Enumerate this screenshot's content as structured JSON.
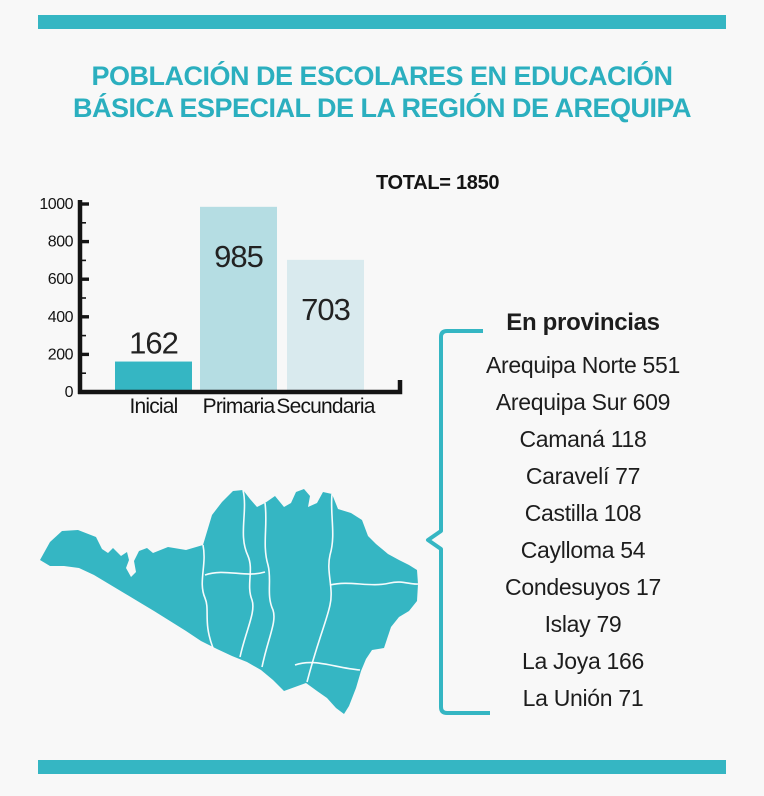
{
  "page": {
    "background": "#f8f8f8",
    "colors": {
      "accent": "#35b6c3",
      "title": "#2bafbf",
      "text": "#1d1d1d",
      "map_border": "#ffffff"
    },
    "title_line1": "POBLACIÓN DE ESCOLARES EN EDUCACIÓN",
    "title_line2": "BÁSICA ESPECIAL DE LA REGIÓN DE AREQUIPA"
  },
  "summary": {
    "total_label": "TOTAL= 1850"
  },
  "chart_data": {
    "type": "bar",
    "title": "POBLACIÓN DE ESCOLARES EN EDUCACIÓN BÁSICA ESPECIAL DE LA REGIÓN DE AREQUIPA",
    "categories": [
      "Inicial",
      "Primaria",
      "Secundaria"
    ],
    "values": [
      162,
      985,
      703
    ],
    "bar_colors": [
      "#35b6c3",
      "#b5dde3",
      "#d9eaee"
    ],
    "ylim": [
      0,
      1000
    ],
    "yticks": [
      0,
      200,
      400,
      600,
      800,
      1000
    ],
    "minor_tick_step": 100,
    "xlabel": "",
    "ylabel": "",
    "grid": false,
    "annotations": [
      "TOTAL= 1850"
    ]
  },
  "provinces": {
    "heading": "En provincias",
    "items": [
      {
        "name": "Arequipa Norte",
        "value": 551
      },
      {
        "name": "Arequipa Sur",
        "value": 609
      },
      {
        "name": "Camaná",
        "value": 118
      },
      {
        "name": "Caravelí",
        "value": 77
      },
      {
        "name": "Castilla",
        "value": 108
      },
      {
        "name": "Caylloma",
        "value": 54
      },
      {
        "name": "Condesuyos",
        "value": 17
      },
      {
        "name": "Islay",
        "value": 79
      },
      {
        "name": "La Joya",
        "value": 166
      },
      {
        "name": "La Unión",
        "value": 71
      }
    ]
  }
}
